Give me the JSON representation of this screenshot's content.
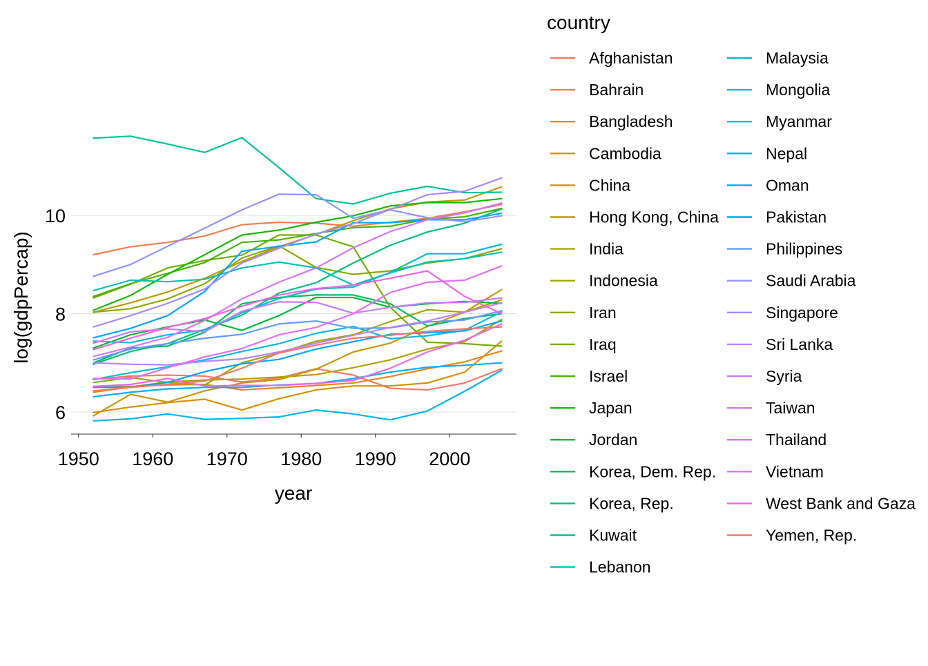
{
  "chart_data": {
    "type": "line",
    "xlabel": "year",
    "ylabel": "log(gdpPercap)",
    "xlim": [
      1949,
      2009
    ],
    "ylim": [
      5.55,
      11.6
    ],
    "x_ticks": [
      1950,
      1960,
      1970,
      1980,
      1990,
      2000
    ],
    "y_ticks": [
      6,
      8,
      10
    ],
    "grid": "horizontal major lines only",
    "legend": {
      "title": "country",
      "placement": "right",
      "columns": 2
    },
    "x": [
      1952,
      1957,
      1962,
      1967,
      1972,
      1977,
      1982,
      1987,
      1992,
      1997,
      2002,
      2007
    ],
    "series": [
      {
        "name": "Afghanistan",
        "color": "#F8766D",
        "values": [
          6.66,
          6.73,
          6.75,
          6.73,
          6.61,
          6.69,
          6.88,
          6.75,
          6.48,
          6.45,
          6.59,
          6.88
        ]
      },
      {
        "name": "Bahrain",
        "color": "#F17E50",
        "values": [
          9.2,
          9.36,
          9.45,
          9.58,
          9.81,
          9.86,
          9.84,
          9.78,
          9.86,
          9.94,
          10.07,
          10.22
        ]
      },
      {
        "name": "Bangladesh",
        "color": "#E7861B",
        "values": [
          6.52,
          6.52,
          6.55,
          6.56,
          6.45,
          6.49,
          6.54,
          6.59,
          6.72,
          6.88,
          7.02,
          7.24
        ]
      },
      {
        "name": "Cambodia",
        "color": "#DB8E00",
        "values": [
          5.99,
          6.1,
          6.19,
          6.26,
          6.04,
          6.27,
          6.45,
          6.53,
          6.53,
          6.59,
          6.81,
          7.44
        ]
      },
      {
        "name": "China",
        "color": "#CF9400",
        "values": [
          5.92,
          6.36,
          6.2,
          6.43,
          6.59,
          6.66,
          6.87,
          7.22,
          7.4,
          7.74,
          8.03,
          8.49
        ]
      },
      {
        "name": "Hong Kong, China",
        "color": "#C09B00",
        "values": [
          8.03,
          8.22,
          8.44,
          8.72,
          9.06,
          9.36,
          9.61,
          9.89,
          10.13,
          10.27,
          10.31,
          10.58
        ]
      },
      {
        "name": "India",
        "color": "#AEA200",
        "values": [
          6.4,
          6.51,
          6.61,
          6.65,
          6.67,
          6.71,
          6.76,
          6.9,
          7.06,
          7.28,
          7.43,
          7.88
        ]
      },
      {
        "name": "Indonesia",
        "color": "#9DA700",
        "values": [
          6.6,
          6.7,
          6.6,
          6.55,
          7.0,
          7.2,
          7.44,
          7.57,
          7.84,
          8.08,
          8.03,
          8.28
        ]
      },
      {
        "name": "Iran",
        "color": "#87AB00",
        "values": [
          8.03,
          8.1,
          8.3,
          8.61,
          9.13,
          9.38,
          8.94,
          8.8,
          8.87,
          9.03,
          9.12,
          9.32
        ]
      },
      {
        "name": "Iraq",
        "color": "#72AF00",
        "values": [
          8.32,
          8.6,
          8.93,
          9.08,
          9.19,
          9.6,
          9.6,
          9.36,
          8.13,
          7.42,
          7.39,
          7.34
        ]
      },
      {
        "name": "Israel",
        "color": "#49B500",
        "values": [
          8.35,
          8.61,
          8.82,
          9.04,
          9.45,
          9.5,
          9.63,
          9.75,
          9.78,
          9.92,
          9.97,
          10.14
        ]
      },
      {
        "name": "Japan",
        "color": "#17B800",
        "values": [
          8.07,
          8.37,
          8.8,
          9.2,
          9.6,
          9.7,
          9.86,
          9.99,
          10.19,
          10.26,
          10.26,
          10.34
        ]
      },
      {
        "name": "Jordan",
        "color": "#00BA38",
        "values": [
          7.3,
          7.57,
          7.73,
          7.87,
          7.66,
          7.96,
          8.33,
          8.33,
          8.13,
          8.2,
          8.25,
          8.21
        ]
      },
      {
        "name": "Korea, Dem. Rep.",
        "color": "#00BD5C",
        "values": [
          7.0,
          7.3,
          7.34,
          7.62,
          8.2,
          8.33,
          8.38,
          8.38,
          8.2,
          7.75,
          7.9,
          8.0
        ]
      },
      {
        "name": "Korea, Rep.",
        "color": "#00BF7D",
        "values": [
          6.97,
          7.23,
          7.39,
          7.68,
          7.97,
          8.42,
          8.63,
          9.03,
          9.39,
          9.66,
          9.84,
          10.13
        ]
      },
      {
        "name": "Kuwait",
        "color": "#00C19A",
        "values": [
          11.57,
          11.61,
          11.45,
          11.28,
          11.58,
          10.97,
          10.34,
          10.23,
          10.45,
          10.59,
          10.46,
          10.47
        ]
      },
      {
        "name": "Lebanon",
        "color": "#00C0B5",
        "values": [
          8.47,
          8.68,
          8.65,
          8.7,
          8.93,
          9.05,
          8.93,
          8.58,
          8.83,
          9.05,
          9.12,
          9.25
        ]
      },
      {
        "name": "Malaysia",
        "color": "#00BECC",
        "values": [
          7.44,
          7.41,
          7.57,
          7.67,
          8.02,
          8.31,
          8.5,
          8.54,
          8.84,
          9.22,
          9.22,
          9.41
        ]
      },
      {
        "name": "Mongolia",
        "color": "#00BBDC",
        "values": [
          6.66,
          6.8,
          6.92,
          7.06,
          7.23,
          7.39,
          7.6,
          7.74,
          7.49,
          7.55,
          7.66,
          8.04
        ]
      },
      {
        "name": "Myanmar",
        "color": "#00B5EE",
        "values": [
          5.82,
          5.86,
          5.96,
          5.85,
          5.87,
          5.9,
          6.04,
          5.96,
          5.84,
          6.02,
          6.42,
          6.85
        ]
      },
      {
        "name": "Nepal",
        "color": "#00AFF9",
        "values": [
          6.31,
          6.4,
          6.47,
          6.5,
          6.5,
          6.55,
          6.58,
          6.68,
          6.81,
          6.91,
          6.95,
          7.0
        ]
      },
      {
        "name": "Oman",
        "color": "#00A7FF",
        "values": [
          7.51,
          7.7,
          7.96,
          8.45,
          9.27,
          9.37,
          9.46,
          9.85,
          9.85,
          9.91,
          9.91,
          10.04
        ]
      },
      {
        "name": "Pakistan",
        "color": "#00A5FF",
        "values": [
          6.5,
          6.5,
          6.6,
          6.82,
          6.98,
          7.07,
          7.28,
          7.43,
          7.58,
          7.61,
          7.65,
          7.85
        ]
      },
      {
        "name": "Philippines",
        "color": "#619CFF",
        "values": [
          7.06,
          7.28,
          7.39,
          7.5,
          7.58,
          7.79,
          7.85,
          7.7,
          7.71,
          7.83,
          7.87,
          8.06
        ]
      },
      {
        "name": "Saudi Arabia",
        "color": "#8D95FF",
        "values": [
          8.76,
          9.0,
          9.37,
          9.74,
          10.11,
          10.43,
          10.42,
          9.94,
          10.11,
          9.95,
          9.87,
          9.99
        ]
      },
      {
        "name": "Singapore",
        "color": "#A58AFF",
        "values": [
          7.73,
          7.96,
          8.21,
          8.5,
          9.03,
          9.33,
          9.62,
          9.83,
          10.12,
          10.42,
          10.49,
          10.76
        ]
      },
      {
        "name": "Sri Lanka",
        "color": "#B983FF",
        "values": [
          7.0,
          6.97,
          6.96,
          7.03,
          7.08,
          7.22,
          7.4,
          7.56,
          7.72,
          7.85,
          8.03,
          8.22
        ]
      },
      {
        "name": "Syria",
        "color": "#C77CFF",
        "values": [
          7.4,
          7.63,
          7.69,
          7.63,
          8.05,
          8.24,
          8.23,
          8.01,
          8.13,
          8.22,
          8.23,
          8.32
        ]
      },
      {
        "name": "Taiwan",
        "color": "#D575FE",
        "values": [
          7.13,
          7.32,
          7.52,
          7.86,
          8.3,
          8.64,
          8.93,
          9.34,
          9.67,
          9.91,
          10.05,
          10.25
        ]
      },
      {
        "name": "Thailand",
        "color": "#E36EF6",
        "values": [
          6.68,
          6.67,
          6.9,
          7.12,
          7.29,
          7.57,
          7.72,
          8.0,
          8.43,
          8.64,
          8.68,
          8.97
        ]
      },
      {
        "name": "Vietnam",
        "color": "#EE67EC",
        "values": [
          6.52,
          6.56,
          6.68,
          6.53,
          6.54,
          6.54,
          6.58,
          6.64,
          6.89,
          7.22,
          7.46,
          7.79
        ]
      },
      {
        "name": "West Bank and Gaza",
        "color": "#F563E3",
        "values": [
          7.27,
          7.5,
          7.72,
          7.9,
          8.15,
          8.38,
          8.51,
          8.58,
          8.72,
          8.87,
          8.35,
          8.0
        ]
      },
      {
        "name": "Yemen, Rep.",
        "color": "#F8766D",
        "values": [
          6.43,
          6.5,
          6.56,
          6.63,
          6.89,
          7.2,
          7.36,
          7.5,
          7.56,
          7.64,
          7.69,
          7.73
        ]
      }
    ]
  }
}
